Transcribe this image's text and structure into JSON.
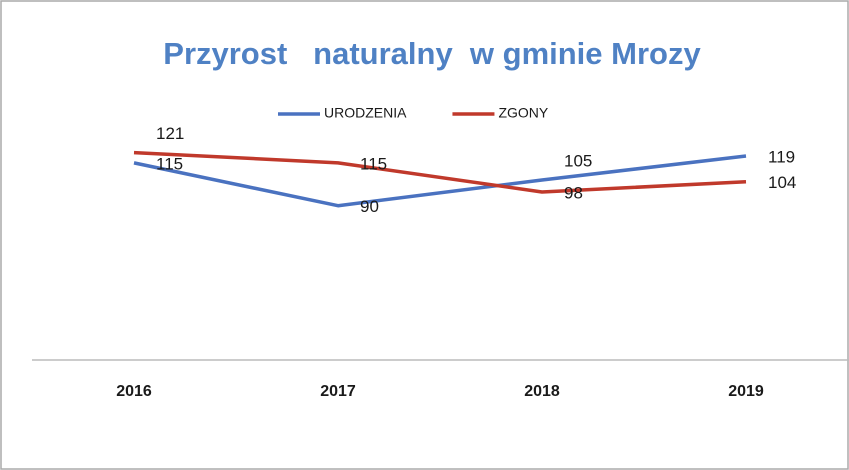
{
  "chart_data": {
    "type": "line",
    "title": "Przyrost   naturalny  w gminie Mrozy",
    "categories": [
      "2016",
      "2017",
      "2018",
      "2019"
    ],
    "series": [
      {
        "name": "URODZENIA",
        "color": "#4a72c0",
        "values": [
          115,
          90,
          105,
          119
        ]
      },
      {
        "name": "ZGONY",
        "color": "#c0392b",
        "values": [
          121,
          115,
          98,
          104
        ]
      }
    ],
    "ylim": [
      0,
      140
    ],
    "legend": "top"
  }
}
